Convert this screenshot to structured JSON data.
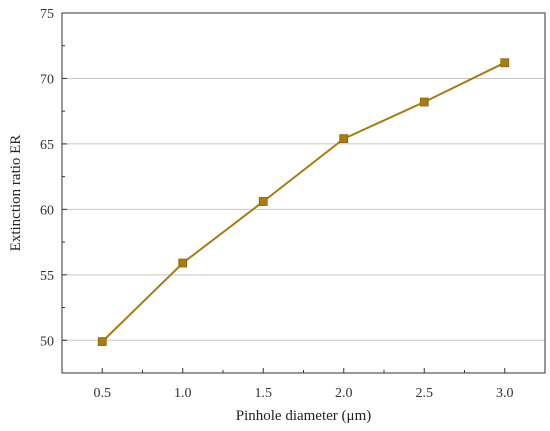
{
  "chart_data": {
    "type": "line",
    "title": "",
    "xlabel": "Pinhole diameter (μm)",
    "ylabel": "Extinction ratio ER",
    "x": [
      0.5,
      1.0,
      1.5,
      2.0,
      2.5,
      3.0
    ],
    "x_tick_labels": [
      "0.5",
      "1.0",
      "1.5",
      "2.0",
      "2.5",
      "3.0"
    ],
    "xlim": [
      0.25,
      3.25
    ],
    "ylim": [
      47.5,
      75
    ],
    "y_ticks": [
      50,
      55,
      60,
      65,
      70,
      75
    ],
    "grid": "horizontal",
    "legend": "none",
    "series": [
      {
        "values": [
          49.9,
          55.9,
          60.6,
          65.4,
          68.2,
          71.2
        ],
        "color": "#a87c10",
        "marker": "square"
      }
    ]
  }
}
